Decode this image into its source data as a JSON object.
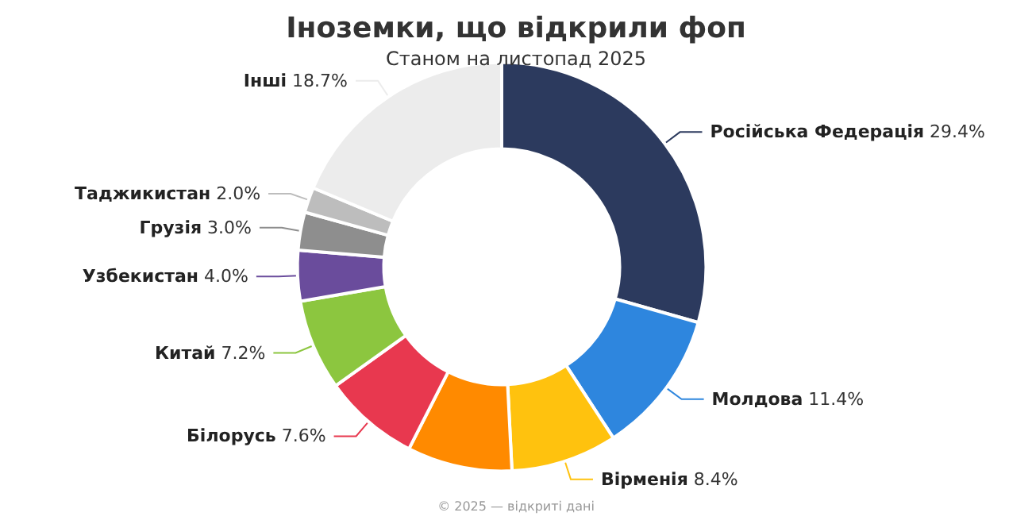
{
  "chart_data": {
    "type": "donut",
    "title": "Іноземки, що відкрили фоп",
    "subtitle": "Станом на листопад 2025",
    "categories": [
      "Російська Федерація",
      "Молдова",
      "Вірменія",
      null,
      "Білорусь",
      "Китай",
      "Узбекистан",
      "Грузія",
      "Таджикистан",
      "Інші"
    ],
    "values": [
      29.4,
      11.4,
      8.4,
      8.3,
      7.6,
      7.2,
      4.0,
      3.0,
      2.0,
      18.7
    ],
    "value_labels": [
      "29.4%",
      "11.4%",
      "8.4%",
      null,
      "7.6%",
      "7.2%",
      "4.0%",
      "3.0%",
      "2.0%",
      "18.7%"
    ],
    "colors": [
      "#2c3a5e",
      "#2e86de",
      "#ffc20e",
      "#ff8a00",
      "#e8384f",
      "#8cc63f",
      "#6a4c9c",
      "#8e8e8e",
      "#bdbdbd",
      "#ececec"
    ],
    "annotations": [
      "© 2025 — відкриті дані"
    ]
  }
}
